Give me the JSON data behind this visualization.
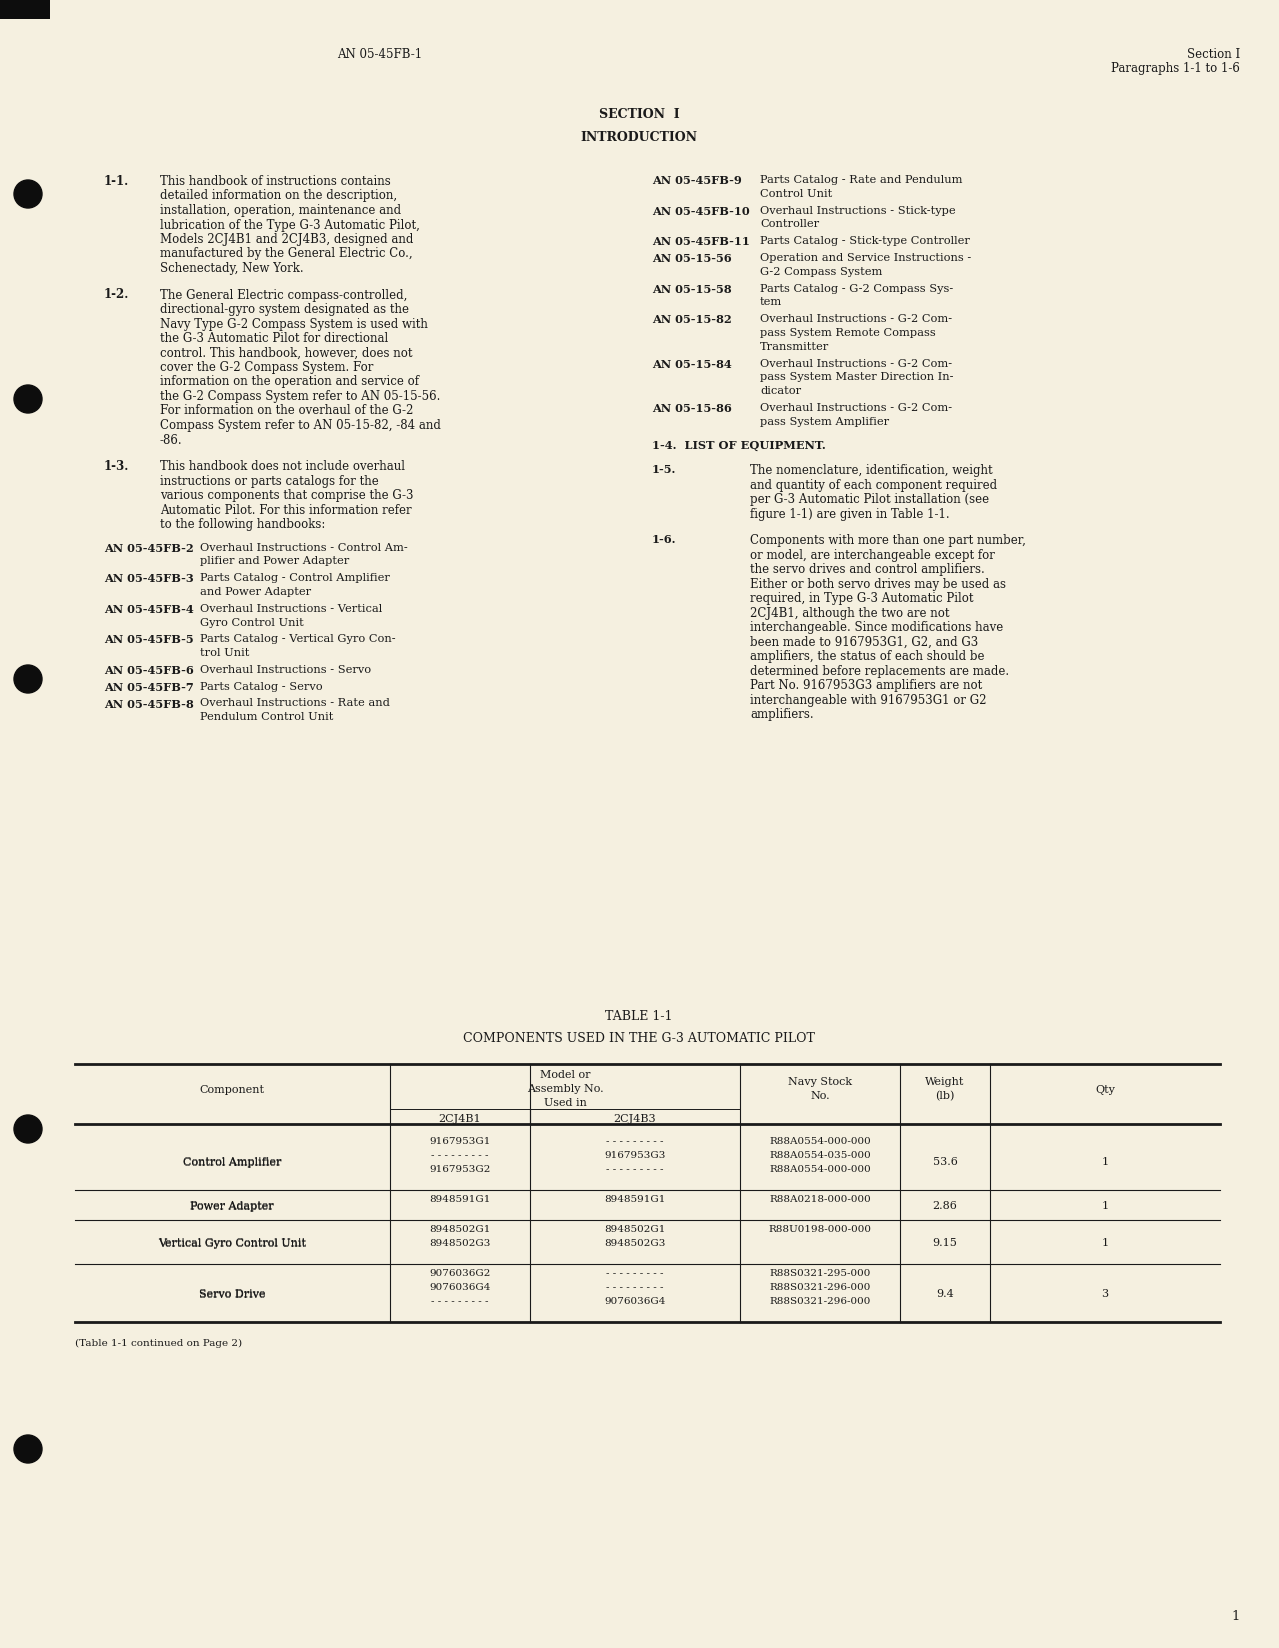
{
  "bg_color": "#f5f0e0",
  "text_color": "#1a1a1a",
  "header_left": "AN 05-45FB-1",
  "header_right_line1": "Section I",
  "header_right_line2": "Paragraphs 1-1 to 1-6",
  "section_title": "SECTION  I",
  "intro_title": "INTRODUCTION",
  "para1_label": "1-1.",
  "para1_text": "This handbook of instructions contains detailed information on the description, installation, operation, maintenance and lubrication of the Type G-3 Automatic Pilot, Models 2CJ4B1 and 2CJ4B3, designed and manufactured by the General Electric Co., Schenectady, New York.",
  "para2_label": "1-2.",
  "para2_text": "The General Electric compass-controlled, directional-gyro system designated as the Navy Type G-2 Compass System is used with the G-3 Automatic Pilot for directional control. This handbook, however, does not cover the G-2 Compass System.  For information on the operation and service of the G-2 Compass System refer to AN 05-15-56.  For information on the overhaul of the G-2 Compass System refer to AN 05-15-82, -84 and -86.",
  "para3_label": "1-3.",
  "para3_text": "This handbook does not include overhaul instructions or parts catalogs for the various components that comprise the G-3 Automatic Pilot.  For this information refer to the following handbooks:",
  "left_refs": [
    [
      "AN 05-45FB-2",
      "Overhaul Instructions - Control Am-\nplifier and Power Adapter"
    ],
    [
      "AN 05-45FB-3",
      "Parts Catalog - Control Amplifier\nand Power Adapter"
    ],
    [
      "AN 05-45FB-4",
      "Overhaul Instructions - Vertical\nGyro Control Unit"
    ],
    [
      "AN 05-45FB-5",
      "Parts Catalog - Vertical Gyro Con-\ntrol Unit"
    ],
    [
      "AN 05-45FB-6",
      "Overhaul Instructions - Servo"
    ],
    [
      "AN 05-45FB-7",
      "Parts Catalog - Servo"
    ],
    [
      "AN 05-45FB-8",
      "Overhaul Instructions - Rate and\nPendulum Control Unit"
    ]
  ],
  "right_refs": [
    [
      "AN 05-45FB-9",
      "Parts Catalog - Rate and Pendulum\nControl Unit"
    ],
    [
      "AN 05-45FB-10",
      "Overhaul Instructions - Stick-type\nController"
    ],
    [
      "AN 05-45FB-11",
      "Parts Catalog - Stick-type Controller"
    ],
    [
      "AN 05-15-56",
      "Operation and Service Instructions -\nG-2 Compass System"
    ],
    [
      "AN 05-15-58",
      "Parts Catalog - G-2 Compass Sys-\ntem"
    ],
    [
      "AN 05-15-82",
      "Overhaul Instructions - G-2 Com-\npass System Remote Compass\nTransmitter"
    ],
    [
      "AN 05-15-84",
      "Overhaul Instructions - G-2 Com-\npass System Master Direction In-\ndicator"
    ],
    [
      "AN 05-15-86",
      "Overhaul Instructions - G-2 Com-\npass System Amplifier"
    ]
  ],
  "para4_label": "1-4.",
  "para4_title": "LIST OF EQUIPMENT.",
  "para5_label": "1-5.",
  "para5_text": "The nomenclature, identification, weight and quantity of each component required per G-3 Automatic Pilot installation (see figure 1-1) are given in Table 1-1.",
  "para6_label": "1-6.",
  "para6_text": "Components with more than one part number, or model, are interchangeable except for the servo drives and control amplifiers.  Either or both servo drives may be used as required, in Type G-3 Automatic Pilot 2CJ4B1, although the two are not interchangeable. Since modifications have been made to 9167953G1, G2, and G3 amplifiers, the status of each should be determined before replacements are made.  Part No. 9167953G3 amplifiers are not interchangeable with 9167953G1 or G2 amplifiers.",
  "table_title1": "TABLE 1-1",
  "table_title2": "COMPONENTS USED IN THE G-3 AUTOMATIC PILOT",
  "table_rows": [
    {
      "component": "Control Amplifier",
      "col2": [
        "9167953G1",
        "- - - - - - - - -",
        "9167953G2"
      ],
      "col3": [
        "- - - - - - - - -",
        "9167953G3",
        "- - - - - - - - -"
      ],
      "navy_stock": [
        "R88A0554-000-000",
        "R88A0554-035-000",
        "R88A0554-000-000"
      ],
      "weight": "53.6",
      "qty": "1"
    },
    {
      "component": "Power Adapter",
      "col2": [
        "8948591G1"
      ],
      "col3": [
        "8948591G1"
      ],
      "navy_stock": [
        "R88A0218-000-000"
      ],
      "weight": "2.86",
      "qty": "1"
    },
    {
      "component": "Vertical Gyro Control Unit",
      "col2": [
        "8948502G1",
        "8948502G3"
      ],
      "col3": [
        "8948502G1",
        "8948502G3"
      ],
      "navy_stock": [
        "R88U0198-000-000"
      ],
      "weight": "9.15",
      "qty": "1"
    },
    {
      "component": "Servo Drive",
      "col2": [
        "9076036G2",
        "9076036G4",
        "- - - - - - - - -"
      ],
      "col3": [
        "- - - - - - - - -",
        "- - - - - - - - -",
        "9076036G4"
      ],
      "navy_stock": [
        "R88S0321-295-000",
        "R88S0321-296-000",
        "R88S0321-296-000"
      ],
      "weight": "9.4",
      "qty": "3"
    }
  ],
  "table_footnote": "(Table 1-1 continued on Page 2)",
  "page_number": "1"
}
